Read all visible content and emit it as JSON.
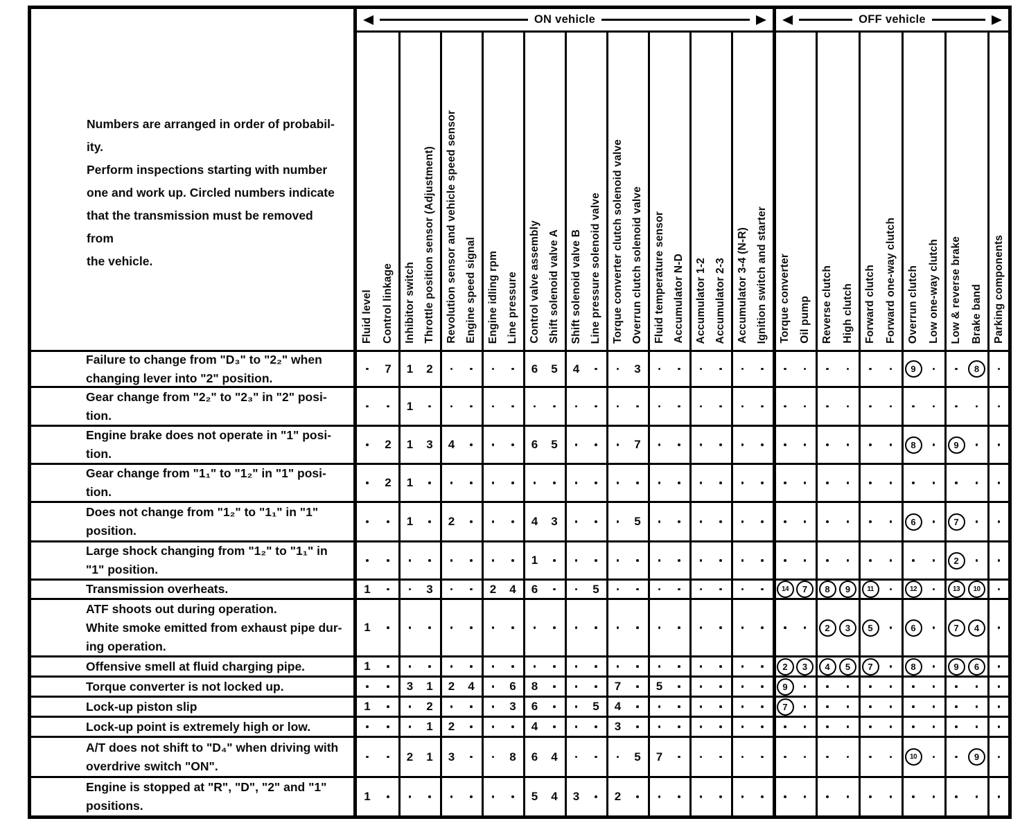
{
  "bands": {
    "on": "ON vehicle",
    "off": "OFF vehicle"
  },
  "intro": "Numbers are arranged in order of probabil-\nity.\nPerform inspections starting with number\none and work up. Circled numbers indicate\nthat the transmission must be removed from\nthe vehicle.",
  "columns": {
    "on": [
      "Fluid level",
      "Control linkage",
      "Inhibitor switch",
      "Throttle position sensor (Adjustment)",
      "Revolution sensor and vehicle speed sensor",
      "Engine speed signal",
      "Engine idling rpm",
      "Line pressure",
      "Control valve assembly",
      "Shift solenoid valve A",
      "Shift solenoid valve B",
      "Line pressure solenoid valve",
      "Torque converter clutch solenoid valve",
      "Overrun clutch solenoid valve",
      "Fluid temperature sensor",
      "Accumulator N-D",
      "Accumulator 1-2",
      "Accumulator 2-3",
      "Accumulator 3-4 (N-R)",
      "Ignition switch and starter"
    ],
    "off": [
      "Torque converter",
      "Oil pump",
      "Reverse clutch",
      "High clutch",
      "Forward clutch",
      "Forward one-way clutch",
      "Overrun clutch",
      "Low one-way clutch",
      "Low & reverse brake",
      "Brake band",
      "Parking components"
    ]
  },
  "legend": {
    "dot": ".",
    "circled_format": "(n)"
  },
  "rows": [
    {
      "symptom": "Failure to change from \"D₃\" to \"2₂\" when\nchanging lever into \"2\" position.",
      "on": [
        ".",
        "7",
        "1",
        "2",
        ".",
        ".",
        ".",
        ".",
        "6",
        "5",
        "4",
        ".",
        ".",
        "3",
        ".",
        ".",
        ".",
        ".",
        ".",
        "."
      ],
      "off": [
        ".",
        ".",
        ".",
        ".",
        ".",
        ".",
        "(9)",
        ".",
        ".",
        "(8)",
        "."
      ]
    },
    {
      "symptom": "Gear change from \"2₂\" to \"2₃\" in \"2\" posi-\ntion.",
      "on": [
        ".",
        ".",
        "1",
        ".",
        ".",
        ".",
        ".",
        ".",
        ".",
        ".",
        ".",
        ".",
        ".",
        ".",
        ".",
        ".",
        ".",
        ".",
        ".",
        "."
      ],
      "off": [
        ".",
        ".",
        ".",
        ".",
        ".",
        ".",
        ".",
        ".",
        ".",
        ".",
        "."
      ]
    },
    {
      "symptom": "Engine brake does not operate in \"1\" posi-\ntion.",
      "on": [
        ".",
        "2",
        "1",
        "3",
        "4",
        ".",
        ".",
        ".",
        "6",
        "5",
        ".",
        ".",
        ".",
        "7",
        ".",
        ".",
        ".",
        ".",
        ".",
        "."
      ],
      "off": [
        ".",
        ".",
        ".",
        ".",
        ".",
        ".",
        "(8)",
        ".",
        "(9)",
        ".",
        "."
      ]
    },
    {
      "symptom": "Gear change from \"1₁\" to \"1₂\" in \"1\" posi-\ntion.",
      "on": [
        ".",
        "2",
        "1",
        ".",
        ".",
        ".",
        ".",
        ".",
        ".",
        ".",
        ".",
        ".",
        ".",
        ".",
        ".",
        ".",
        ".",
        ".",
        ".",
        "."
      ],
      "off": [
        ".",
        ".",
        ".",
        ".",
        ".",
        ".",
        ".",
        ".",
        ".",
        ".",
        "."
      ]
    },
    {
      "symptom": "Does not change from \"1₂\" to \"1₁\" in \"1\"\nposition.",
      "on": [
        ".",
        ".",
        "1",
        ".",
        "2",
        ".",
        ".",
        ".",
        "4",
        "3",
        ".",
        ".",
        ".",
        "5",
        ".",
        ".",
        ".",
        ".",
        ".",
        "."
      ],
      "off": [
        ".",
        ".",
        ".",
        ".",
        ".",
        ".",
        "(6)",
        ".",
        "(7)",
        ".",
        "."
      ]
    },
    {
      "symptom": "Large shock changing from \"1₂\" to \"1₁\" in\n\"1\" position.",
      "on": [
        ".",
        ".",
        ".",
        ".",
        ".",
        ".",
        ".",
        ".",
        "1",
        ".",
        ".",
        ".",
        ".",
        ".",
        ".",
        ".",
        ".",
        ".",
        ".",
        "."
      ],
      "off": [
        ".",
        ".",
        ".",
        ".",
        ".",
        ".",
        ".",
        ".",
        "(2)",
        ".",
        "."
      ]
    },
    {
      "symptom": "Transmission overheats.",
      "on": [
        "1",
        ".",
        ".",
        "3",
        ".",
        ".",
        "2",
        "4",
        "6",
        ".",
        ".",
        "5",
        ".",
        ".",
        ".",
        ".",
        ".",
        ".",
        ".",
        "."
      ],
      "off": [
        "(14)",
        "(7)",
        "(8)",
        "(9)",
        "(11)",
        ".",
        "(12)",
        ".",
        "(13)",
        "(10)",
        "."
      ]
    },
    {
      "symptom": "ATF shoots out during operation.\nWhite smoke emitted from exhaust pipe dur-\ning operation.",
      "on": [
        "1",
        ".",
        ".",
        ".",
        ".",
        ".",
        ".",
        ".",
        ".",
        ".",
        ".",
        ".",
        ".",
        ".",
        ".",
        ".",
        ".",
        ".",
        ".",
        "."
      ],
      "off": [
        ".",
        ".",
        "(2)",
        "(3)",
        "(5)",
        ".",
        "(6)",
        ".",
        "(7)",
        "(4)",
        "."
      ]
    },
    {
      "symptom": "Offensive smell at fluid charging pipe.",
      "on": [
        "1",
        ".",
        ".",
        ".",
        ".",
        ".",
        ".",
        ".",
        ".",
        ".",
        ".",
        ".",
        ".",
        ".",
        ".",
        ".",
        ".",
        ".",
        ".",
        "."
      ],
      "off": [
        "(2)",
        "(3)",
        "(4)",
        "(5)",
        "(7)",
        ".",
        "(8)",
        ".",
        "(9)",
        "(6)",
        "."
      ]
    },
    {
      "symptom": "Torque converter is not locked up.",
      "on": [
        ".",
        ".",
        "3",
        "1",
        "2",
        "4",
        ".",
        "6",
        "8",
        ".",
        ".",
        ".",
        "7",
        ".",
        "5",
        ".",
        ".",
        ".",
        ".",
        "."
      ],
      "off": [
        "(9)",
        ".",
        ".",
        ".",
        ".",
        ".",
        ".",
        ".",
        ".",
        ".",
        "."
      ]
    },
    {
      "symptom": "Lock-up piston slip",
      "on": [
        "1",
        ".",
        ".",
        "2",
        ".",
        ".",
        ".",
        "3",
        "6",
        ".",
        ".",
        "5",
        "4",
        ".",
        ".",
        ".",
        ".",
        ".",
        ".",
        "."
      ],
      "off": [
        "(7)",
        ".",
        ".",
        ".",
        ".",
        ".",
        ".",
        ".",
        ".",
        ".",
        "."
      ]
    },
    {
      "symptom": "Lock-up point is extremely high or low.",
      "on": [
        ".",
        ".",
        ".",
        "1",
        "2",
        ".",
        ".",
        ".",
        "4",
        ".",
        ".",
        ".",
        "3",
        ".",
        ".",
        ".",
        ".",
        ".",
        ".",
        "."
      ],
      "off": [
        ".",
        ".",
        ".",
        ".",
        ".",
        ".",
        ".",
        ".",
        ".",
        ".",
        "."
      ]
    },
    {
      "symptom": "A/T does not shift to \"D₄\" when driving with\noverdrive switch \"ON\".",
      "on": [
        ".",
        ".",
        "2",
        "1",
        "3",
        ".",
        ".",
        "8",
        "6",
        "4",
        ".",
        ".",
        ".",
        "5",
        "7",
        ".",
        ".",
        ".",
        ".",
        "."
      ],
      "off": [
        ".",
        ".",
        ".",
        ".",
        ".",
        ".",
        "(10)",
        ".",
        ".",
        "(9)",
        "."
      ]
    },
    {
      "symptom": "Engine is stopped at \"R\", \"D\", \"2\" and \"1\"\npositions.",
      "on": [
        "1",
        ".",
        ".",
        ".",
        ".",
        ".",
        ".",
        ".",
        "5",
        "4",
        "3",
        ".",
        "2",
        ".",
        ".",
        ".",
        ".",
        ".",
        ".",
        "."
      ],
      "off": [
        ".",
        ".",
        ".",
        ".",
        ".",
        ".",
        ".",
        ".",
        ".",
        ".",
        "."
      ]
    }
  ]
}
